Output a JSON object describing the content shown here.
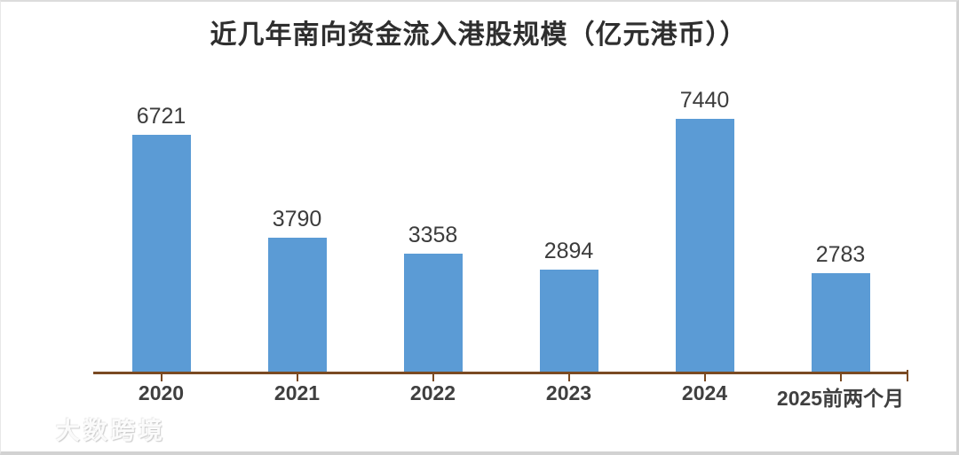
{
  "chart_data": {
    "type": "bar",
    "title": "近几年南向资金流入港股规模（亿元港币））",
    "categories": [
      "2020",
      "2021",
      "2022",
      "2023",
      "2024",
      "2025前两个月"
    ],
    "values": [
      6721,
      3790,
      3358,
      2894,
      7440,
      2783
    ],
    "data_labels_shown": true,
    "xlabel": "",
    "ylabel": "",
    "ylim": [
      0,
      8000
    ],
    "grid": false,
    "legend": "none",
    "bar_color": "#5b9bd5",
    "axis_color": "#7a4a22",
    "label_color": "#3c3c3c"
  },
  "watermark": {
    "logo": "100",
    "text": "大数跨境"
  }
}
